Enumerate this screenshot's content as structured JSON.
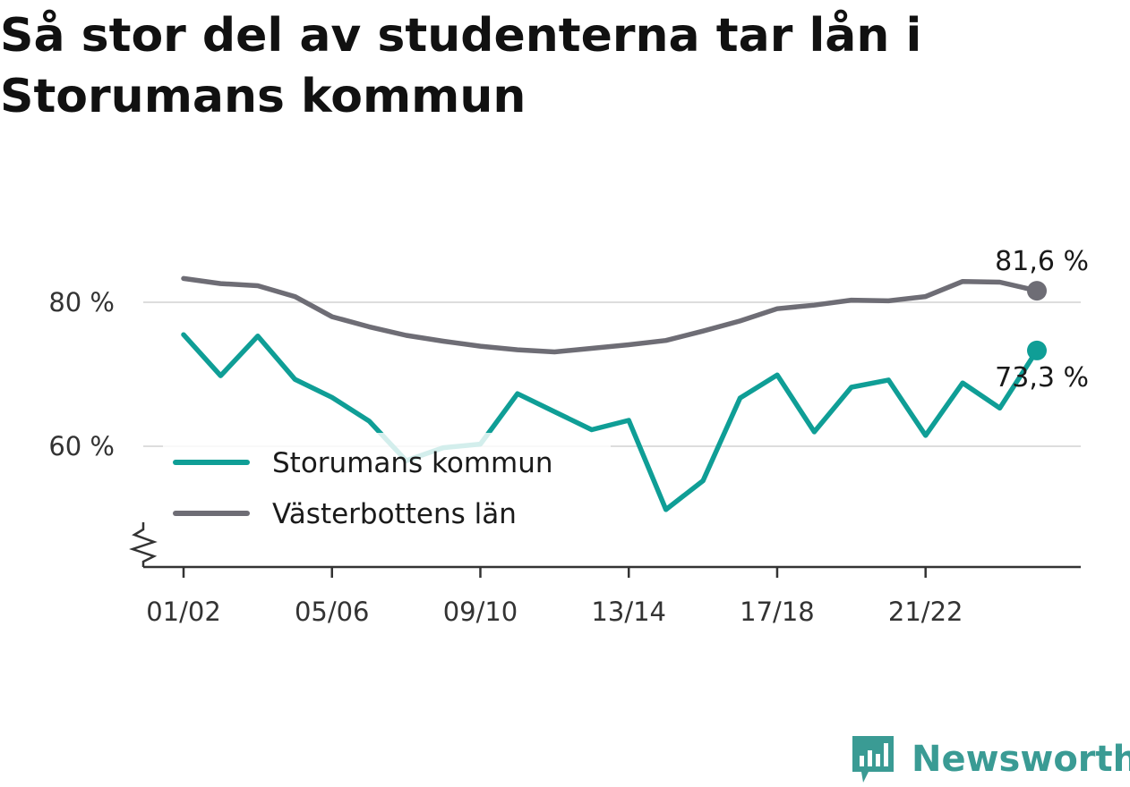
{
  "header": {
    "title": "Så stor del av studenterna tar lån i Storumans kommun"
  },
  "brand": {
    "name": "Newsworthy",
    "icon": "newsworthy-logo-icon",
    "color": "#3a9b94"
  },
  "chart_data": {
    "type": "line",
    "title": "Så stor del av studenterna tar lån i Storumans kommun",
    "xlabel": "",
    "ylabel": "",
    "x": [
      "01/02",
      "02/03",
      "03/04",
      "04/05",
      "05/06",
      "06/07",
      "07/08",
      "08/09",
      "09/10",
      "10/11",
      "11/12",
      "12/13",
      "13/14",
      "14/15",
      "15/16",
      "16/17",
      "17/18",
      "18/19",
      "19/20",
      "20/21",
      "21/22",
      "22/23",
      "23/24",
      "24/25"
    ],
    "x_ticks": [
      "01/02",
      "05/06",
      "09/10",
      "13/14",
      "17/18",
      "21/22"
    ],
    "y_ticks": [
      60,
      80
    ],
    "y_tick_labels": [
      "60 %",
      "80 %"
    ],
    "ylim": [
      44,
      90
    ],
    "axis_break": true,
    "grid": true,
    "legend_position": "bottom-left",
    "series": [
      {
        "name": "Storumans kommun",
        "color": "#0f9e96",
        "values": [
          75.5,
          69.8,
          75.3,
          69.3,
          66.8,
          63.5,
          58.0,
          59.8,
          60.3,
          67.3,
          64.8,
          62.3,
          63.6,
          51.2,
          55.2,
          66.7,
          69.9,
          62.0,
          68.2,
          69.2,
          61.5,
          68.8,
          65.3,
          73.3
        ],
        "end_label": "73,3 %"
      },
      {
        "name": "Västerbottens län",
        "color": "#6e6d75",
        "values": [
          83.3,
          82.6,
          82.3,
          80.8,
          78.0,
          76.6,
          75.4,
          74.6,
          73.9,
          73.4,
          73.1,
          73.6,
          74.1,
          74.7,
          76.0,
          77.4,
          79.1,
          79.6,
          80.3,
          80.2,
          80.8,
          82.9,
          82.8,
          81.6
        ],
        "end_label": "81,6 %"
      }
    ]
  }
}
